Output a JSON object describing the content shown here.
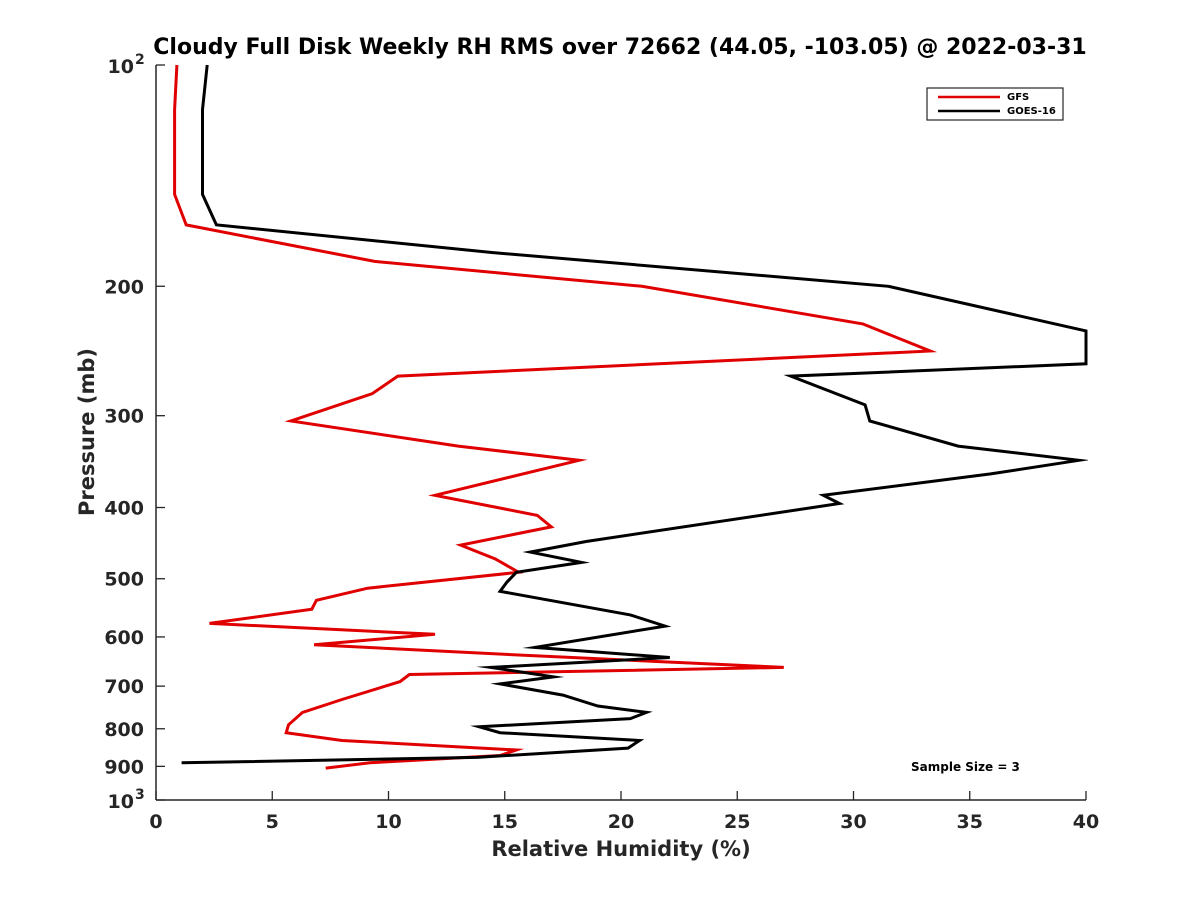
{
  "chart_data": {
    "type": "line",
    "title": "Cloudy Full Disk Weekly RH RMS over 72662 (44.05, -103.05) @ 2022-03-31",
    "xlabel": "Relative Humidity (%)",
    "ylabel": "Pressure (mb)",
    "xlim": [
      0,
      40
    ],
    "ylim": [
      100,
      1000
    ],
    "yscale": "log",
    "y_reversed": true,
    "x_ticks": [
      "0",
      "5",
      "10",
      "15",
      "20",
      "25",
      "30",
      "35",
      "40"
    ],
    "y_ticks": [
      {
        "value": 100,
        "base": "10",
        "exp": "2"
      },
      {
        "value": 200,
        "label": "200"
      },
      {
        "value": 300,
        "label": "300"
      },
      {
        "value": 400,
        "label": "400"
      },
      {
        "value": 500,
        "label": "500"
      },
      {
        "value": 600,
        "label": "600"
      },
      {
        "value": 700,
        "label": "700"
      },
      {
        "value": 800,
        "label": "800"
      },
      {
        "value": 900,
        "label": "900"
      },
      {
        "value": 1000,
        "base": "10",
        "exp": "3"
      }
    ],
    "grid": false,
    "legend_position": "top-right",
    "annotation": "Sample Size = 3",
    "series": [
      {
        "name": "GFS",
        "color": "#e00000",
        "points": [
          [
            0.9,
            100
          ],
          [
            0.8,
            115
          ],
          [
            0.8,
            130
          ],
          [
            0.8,
            150
          ],
          [
            1.3,
            165
          ],
          [
            9.4,
            185
          ],
          [
            20.9,
            200
          ],
          [
            30.4,
            225
          ],
          [
            33.3,
            245
          ],
          [
            10.4,
            265
          ],
          [
            9.3,
            280
          ],
          [
            5.8,
            305
          ],
          [
            13.0,
            330
          ],
          [
            18.2,
            345
          ],
          [
            12.0,
            385
          ],
          [
            16.4,
            410
          ],
          [
            17.0,
            425
          ],
          [
            13.1,
            450
          ],
          [
            14.6,
            470
          ],
          [
            15.6,
            490
          ],
          [
            9.1,
            515
          ],
          [
            6.9,
            535
          ],
          [
            6.7,
            550
          ],
          [
            2.3,
            575
          ],
          [
            12.0,
            595
          ],
          [
            6.8,
            615
          ],
          [
            15.6,
            635
          ],
          [
            27.0,
            660
          ],
          [
            10.9,
            675
          ],
          [
            10.5,
            690
          ],
          [
            8.0,
            730
          ],
          [
            6.3,
            760
          ],
          [
            5.7,
            790
          ],
          [
            5.6,
            810
          ],
          [
            8.0,
            830
          ],
          [
            15.5,
            855
          ],
          [
            14.8,
            870
          ],
          [
            9.2,
            890
          ],
          [
            7.3,
            905
          ]
        ]
      },
      {
        "name": "GOES-16",
        "color": "#000000",
        "points": [
          [
            2.2,
            100
          ],
          [
            2.0,
            115
          ],
          [
            2.0,
            130
          ],
          [
            2.0,
            150
          ],
          [
            2.6,
            165
          ],
          [
            14.5,
            180
          ],
          [
            31.5,
            200
          ],
          [
            40.0,
            230
          ],
          [
            40.0,
            255
          ],
          [
            27.3,
            265
          ],
          [
            30.5,
            290
          ],
          [
            30.7,
            305
          ],
          [
            34.5,
            330
          ],
          [
            39.7,
            345
          ],
          [
            35.9,
            360
          ],
          [
            28.7,
            385
          ],
          [
            29.4,
            395
          ],
          [
            18.5,
            445
          ],
          [
            16.1,
            460
          ],
          [
            18.3,
            475
          ],
          [
            15.5,
            490
          ],
          [
            15.1,
            505
          ],
          [
            14.8,
            520
          ],
          [
            20.4,
            560
          ],
          [
            21.9,
            580
          ],
          [
            16.3,
            620
          ],
          [
            22.1,
            640
          ],
          [
            14.4,
            660
          ],
          [
            17.1,
            680
          ],
          [
            14.8,
            695
          ],
          [
            17.5,
            720
          ],
          [
            19.0,
            745
          ],
          [
            21.1,
            760
          ],
          [
            20.4,
            775
          ],
          [
            13.9,
            795
          ],
          [
            14.8,
            810
          ],
          [
            20.8,
            830
          ],
          [
            20.3,
            850
          ],
          [
            13.8,
            875
          ],
          [
            1.1,
            890
          ]
        ]
      }
    ]
  }
}
